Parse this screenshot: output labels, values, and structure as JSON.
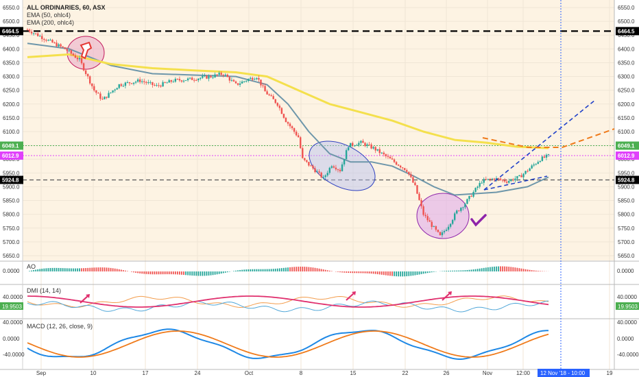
{
  "header": {
    "symbol_line": "ALL ORDINARIES, 60, ASX",
    "ema50_label": "EMA (50, ohlc4)",
    "ema200_label": "EMA (200, ohlc4)"
  },
  "price_axis": {
    "ticks": [
      "6550.0",
      "6500.0",
      "6450.0",
      "6400.0",
      "6350.0",
      "6300.0",
      "6250.0",
      "6200.0",
      "6150.0",
      "6100.0",
      "6050.0",
      "6000.0",
      "5950.0",
      "5900.0",
      "5850.0",
      "5800.0",
      "5750.0",
      "5700.0",
      "5650.0"
    ],
    "badges": [
      {
        "label": "6464.5",
        "value": 6464.5,
        "color": "#000000",
        "text_color": "#ffffff"
      },
      {
        "label": "6049.1",
        "value": 6049.1,
        "color": "#4caf50",
        "text_color": "#ffffff"
      },
      {
        "label": "6012.9",
        "value": 6012.9,
        "color": "#e040fb",
        "text_color": "#ffffff"
      },
      {
        "label": "5924.8",
        "value": 5924.8,
        "color": "#000000",
        "text_color": "#ffffff"
      }
    ]
  },
  "indicators": {
    "ao": {
      "label": "AO",
      "axis": "0.0000"
    },
    "dmi": {
      "label": "DMI (14, 14)",
      "axis_top": "40.0000",
      "badge": "19.9503"
    },
    "macd": {
      "label": "MACD (12, 26, close, 9)",
      "axis_top": "40.0000",
      "axis_mid": "0.0000",
      "axis_low": "-40.0000"
    }
  },
  "time_axis": {
    "labels": [
      "Sep",
      "10",
      "17",
      "24",
      "Oct",
      "8",
      "15",
      "22",
      "26",
      "Nov",
      "12:00",
      "19"
    ],
    "crosshair_label": "12 Nov '18 - 10:00"
  },
  "colors": {
    "panel_bg": "#fdf3e3",
    "up": "#26a69a",
    "down": "#ef5350",
    "ema50": "#6d96aa",
    "ema200": "#f4e04d",
    "dmi_plus": "#e0306e",
    "dmi_minus": "#4fa6d8",
    "adx": "#f39c4b",
    "macd": "#1e88e5",
    "signal": "#ef7a1a",
    "crosshair": "#2962ff"
  },
  "chart_data": {
    "type": "candlestick",
    "title": "ALL ORDINARIES, 60, ASX",
    "ylim": [
      5640,
      6570
    ],
    "levels": [
      6464.5,
      6049.1,
      6012.9,
      5924.8
    ],
    "price_path": [
      [
        0,
        6470
      ],
      [
        10,
        6430
      ],
      [
        18,
        6400
      ],
      [
        25,
        6360
      ],
      [
        32,
        6250
      ],
      [
        36,
        6215
      ],
      [
        44,
        6270
      ],
      [
        54,
        6285
      ],
      [
        62,
        6265
      ],
      [
        70,
        6285
      ],
      [
        78,
        6290
      ],
      [
        88,
        6300
      ],
      [
        94,
        6310
      ],
      [
        100,
        6270
      ],
      [
        106,
        6290
      ],
      [
        110,
        6300
      ],
      [
        114,
        6245
      ],
      [
        120,
        6200
      ],
      [
        124,
        6140
      ],
      [
        130,
        6080
      ],
      [
        132,
        6000
      ],
      [
        138,
        5960
      ],
      [
        142,
        5930
      ],
      [
        146,
        5980
      ],
      [
        150,
        5960
      ],
      [
        154,
        6050
      ],
      [
        160,
        6060
      ],
      [
        166,
        6040
      ],
      [
        172,
        6010
      ],
      [
        178,
        5980
      ],
      [
        182,
        5960
      ],
      [
        186,
        5900
      ],
      [
        190,
        5800
      ],
      [
        194,
        5760
      ],
      [
        198,
        5720
      ],
      [
        202,
        5760
      ],
      [
        206,
        5810
      ],
      [
        210,
        5840
      ],
      [
        214,
        5880
      ],
      [
        218,
        5920
      ],
      [
        224,
        5930
      ],
      [
        230,
        5920
      ],
      [
        236,
        5935
      ],
      [
        240,
        5960
      ],
      [
        246,
        6000
      ],
      [
        250,
        6012
      ]
    ],
    "series": [
      {
        "name": "EMA (50, ohlc4)",
        "values": [
          [
            0,
            6420
          ],
          [
            20,
            6400
          ],
          [
            40,
            6340
          ],
          [
            60,
            6310
          ],
          [
            80,
            6305
          ],
          [
            100,
            6300
          ],
          [
            115,
            6270
          ],
          [
            125,
            6200
          ],
          [
            135,
            6100
          ],
          [
            145,
            6020
          ],
          [
            155,
            5990
          ],
          [
            165,
            5990
          ],
          [
            175,
            5975
          ],
          [
            185,
            5940
          ],
          [
            195,
            5900
          ],
          [
            205,
            5870
          ],
          [
            215,
            5875
          ],
          [
            225,
            5880
          ],
          [
            240,
            5900
          ],
          [
            250,
            5935
          ]
        ]
      },
      {
        "name": "EMA (200, ohlc4)",
        "values": [
          [
            0,
            6370
          ],
          [
            20,
            6380
          ],
          [
            40,
            6345
          ],
          [
            60,
            6330
          ],
          [
            80,
            6322
          ],
          [
            100,
            6315
          ],
          [
            115,
            6300
          ],
          [
            130,
            6250
          ],
          [
            145,
            6200
          ],
          [
            160,
            6170
          ],
          [
            175,
            6140
          ],
          [
            190,
            6100
          ],
          [
            205,
            6070
          ],
          [
            220,
            6060
          ],
          [
            235,
            6045
          ],
          [
            250,
            6040
          ]
        ]
      }
    ]
  }
}
